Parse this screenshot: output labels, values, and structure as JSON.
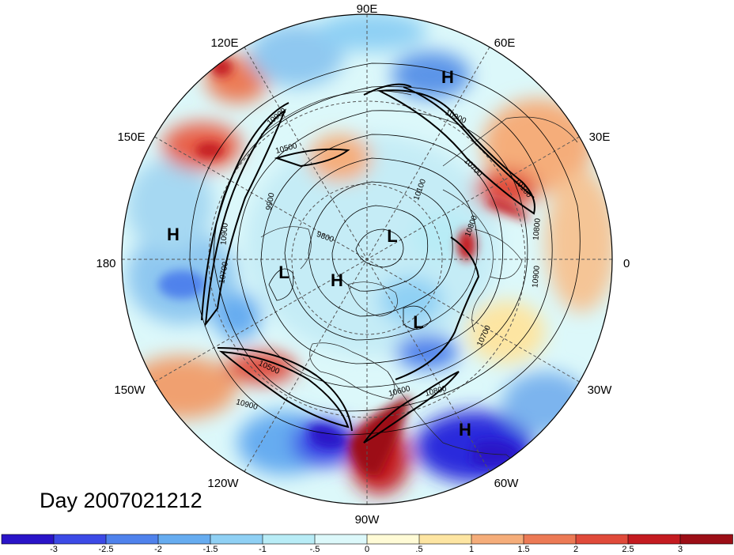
{
  "title": "Day 2007021212",
  "longitude_labels": [
    "90E",
    "60E",
    "30E",
    "0",
    "30W",
    "60W",
    "90W",
    "120W",
    "150W",
    "180",
    "150E",
    "120E"
  ],
  "centers": [
    {
      "label": "H",
      "name": "H-north-eurasia"
    },
    {
      "label": "H",
      "name": "H-pacific"
    },
    {
      "label": "H",
      "name": "H-pole"
    },
    {
      "label": "H",
      "name": "H-atlantic"
    },
    {
      "label": "L",
      "name": "L-pole"
    },
    {
      "label": "L",
      "name": "L-alaska"
    },
    {
      "label": "L",
      "name": "L-canada"
    }
  ],
  "contour_labels": [
    "10900",
    "10500",
    "9900",
    "10100",
    "9800",
    "10900",
    "10700",
    "10100",
    "10900",
    "10700",
    "10900",
    "10700",
    "10500",
    "10600",
    "10800",
    "10800",
    "10900",
    "10800"
  ],
  "colorbar": {
    "ticks": [
      "-3",
      "-2.5",
      "-2",
      "-1.5",
      "-1",
      "-.5",
      "0",
      ".5",
      "1",
      "1.5",
      "2",
      "2.5",
      "3"
    ],
    "colors": [
      "#2a14c8",
      "#3c4ae6",
      "#4f82ec",
      "#66acf0",
      "#8fd0f4",
      "#b8ecf6",
      "#dcf8fa",
      "#fffbd6",
      "#fde5a2",
      "#f5ad7a",
      "#ec7a55",
      "#e04a3a",
      "#c41b20",
      "#9c0e16"
    ]
  },
  "colors": {
    "jet": "#000000",
    "grid": "#555555",
    "outline": "#000000"
  }
}
